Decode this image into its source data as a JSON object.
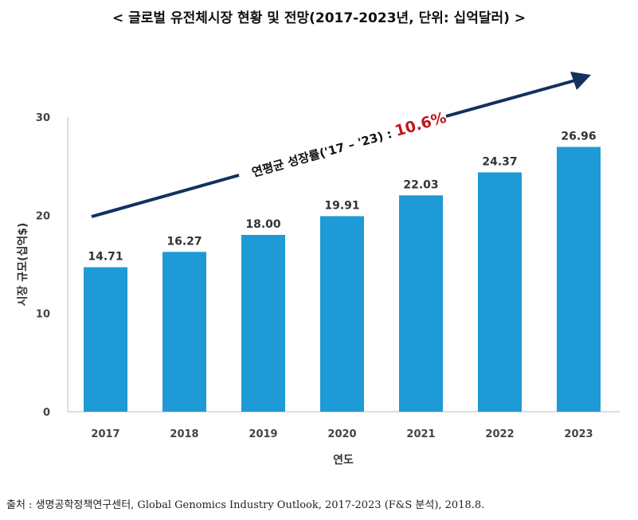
{
  "title": "< 글로벌 유전체시장 현황 및 전망(2017-2023년, 단위: 십억달러) >",
  "source": "출처 : 생명공학정책연구센터, Global Genomics Industry Outlook, 2017-2023 (F&S 분석), 2018.8.",
  "chart_data": {
    "type": "bar",
    "categories": [
      "2017",
      "2018",
      "2019",
      "2020",
      "2021",
      "2022",
      "2023"
    ],
    "values": [
      14.71,
      16.27,
      18.0,
      19.91,
      22.03,
      24.37,
      26.96
    ],
    "data_labels": [
      "14.71",
      "16.27",
      "18.00",
      "19.91",
      "22.03",
      "24.37",
      "26.96"
    ],
    "xlabel": "연도",
    "ylabel": "시장 규모(십억$)",
    "ylim": [
      0,
      30
    ],
    "yticks": [
      0,
      10,
      20,
      30
    ],
    "grid": false,
    "bar_color": "#1e9ad6",
    "annotation": {
      "text": "연평균 성장률('17 – '23) : ",
      "value": "10.6%",
      "value_color": "#c0161e",
      "arrow_color": "#13305f"
    }
  }
}
